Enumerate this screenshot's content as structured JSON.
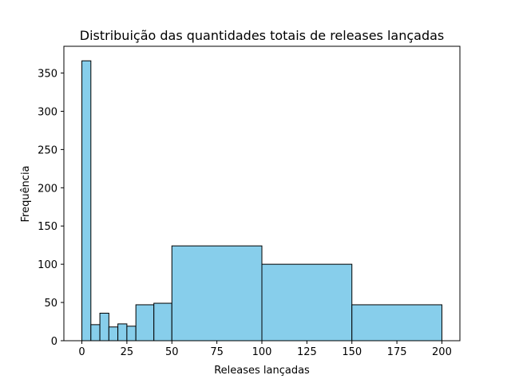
{
  "chart_data": {
    "type": "bar",
    "title": "Distribuição das quantidades totais de releases lançadas",
    "xlabel": "Releases lançadas",
    "ylabel": "Frequência",
    "xlim": [
      -10,
      210
    ],
    "ylim": [
      0,
      385
    ],
    "xticks": [
      0,
      25,
      50,
      75,
      100,
      125,
      150,
      175,
      200
    ],
    "yticks": [
      0,
      50,
      100,
      150,
      200,
      250,
      300,
      350
    ],
    "bins": [
      {
        "start": 0,
        "end": 5,
        "count": 366
      },
      {
        "start": 5,
        "end": 10,
        "count": 21
      },
      {
        "start": 10,
        "end": 15,
        "count": 36
      },
      {
        "start": 15,
        "end": 20,
        "count": 18
      },
      {
        "start": 20,
        "end": 25,
        "count": 22
      },
      {
        "start": 25,
        "end": 30,
        "count": 19
      },
      {
        "start": 30,
        "end": 40,
        "count": 47
      },
      {
        "start": 40,
        "end": 50,
        "count": 49
      },
      {
        "start": 50,
        "end": 100,
        "count": 124
      },
      {
        "start": 100,
        "end": 150,
        "count": 100
      },
      {
        "start": 150,
        "end": 200,
        "count": 47
      }
    ],
    "bar_color": "#87CEEB",
    "edge_color": "#000000",
    "grid": false,
    "legend": "none"
  }
}
